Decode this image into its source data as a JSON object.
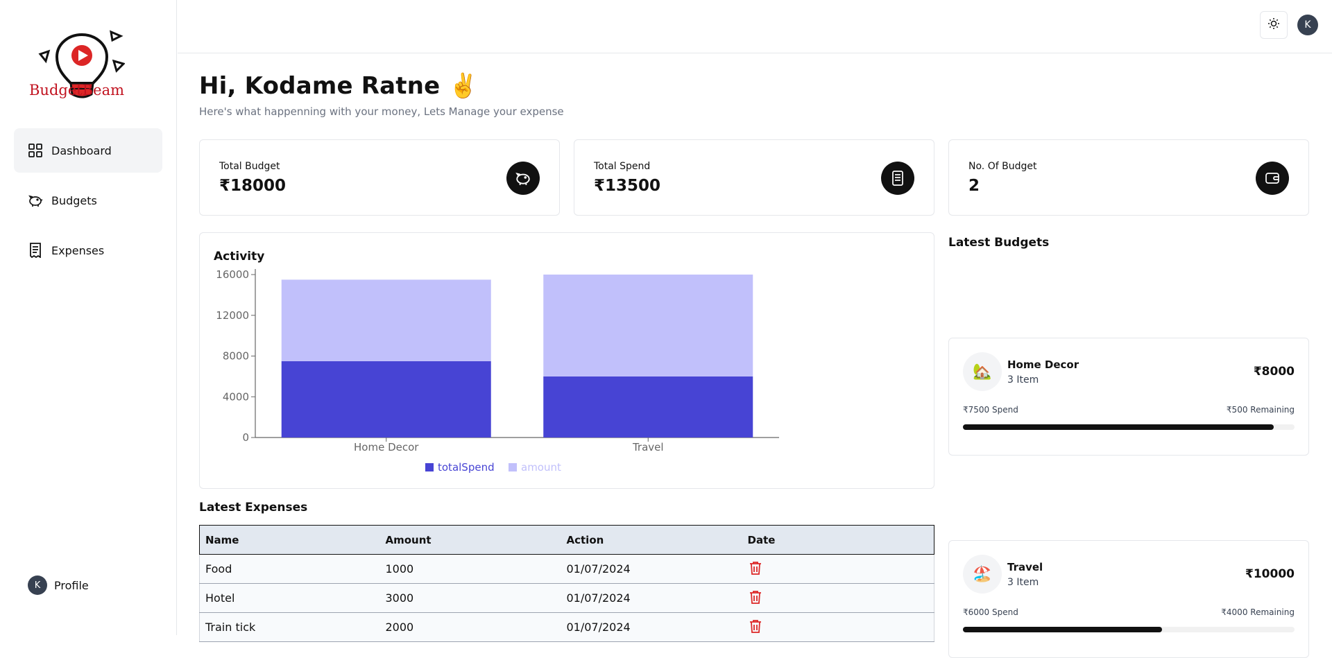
{
  "app": {
    "name": "BudgetBeam"
  },
  "sidebar": {
    "items": [
      {
        "label": "Dashboard",
        "icon": "dashboard-grid-icon",
        "active": true
      },
      {
        "label": "Budgets",
        "icon": "piggy-bank-icon",
        "active": false
      },
      {
        "label": "Expenses",
        "icon": "receipt-icon",
        "active": false
      }
    ],
    "profile": {
      "initial": "K",
      "label": "Profile"
    }
  },
  "topbar": {
    "theme_icon": "sun-icon",
    "avatar_initial": "K"
  },
  "greeting": {
    "title": "Hi, Kodame Ratne ✌️",
    "subtitle": "Here's what happenning with your money, Lets Manage your expense"
  },
  "cards": [
    {
      "title": "Total Budget",
      "value": "₹18000",
      "icon": "piggy-bank-icon"
    },
    {
      "title": "Total Spend",
      "value": "₹13500",
      "icon": "receipt-icon"
    },
    {
      "title": "No. Of Budget",
      "value": "2",
      "icon": "wallet-icon"
    }
  ],
  "activity": {
    "title": "Activity"
  },
  "chart_data": {
    "type": "bar",
    "stacked": true,
    "categories": [
      "Home Decor",
      "Travel"
    ],
    "series": [
      {
        "name": "totalSpend",
        "values": [
          7500,
          6000
        ],
        "color": "#4744d4"
      },
      {
        "name": "amount",
        "values": [
          8000,
          10000
        ],
        "color": "#c1c0fb"
      }
    ],
    "yticks": [
      "0",
      "4000",
      "8000",
      "12000",
      "16000"
    ],
    "ylim": [
      0,
      16000
    ],
    "legend": "bottom"
  },
  "latest_budgets": {
    "title": "Latest Budgets",
    "items": [
      {
        "icon": "🏡",
        "name": "Home Decor",
        "count": "3 Item",
        "amount": "₹8000",
        "spend": "₹7500 Spend",
        "remaining": "₹500 Remaining",
        "progress": 0.9375
      },
      {
        "icon": "🏖️",
        "name": "Travel",
        "count": "3 Item",
        "amount": "₹10000",
        "spend": "₹6000 Spend",
        "remaining": "₹4000 Remaining",
        "progress": 0.6
      }
    ]
  },
  "latest_expenses": {
    "title": "Latest Expenses",
    "columns": [
      "Name",
      "Amount",
      "Action",
      "Date"
    ],
    "rows": [
      {
        "name": "Food",
        "amount": "1000",
        "date": "01/07/2024"
      },
      {
        "name": "Hotel",
        "amount": "3000",
        "date": "01/07/2024"
      },
      {
        "name": "Train tick",
        "amount": "2000",
        "date": "01/07/2024"
      }
    ]
  }
}
